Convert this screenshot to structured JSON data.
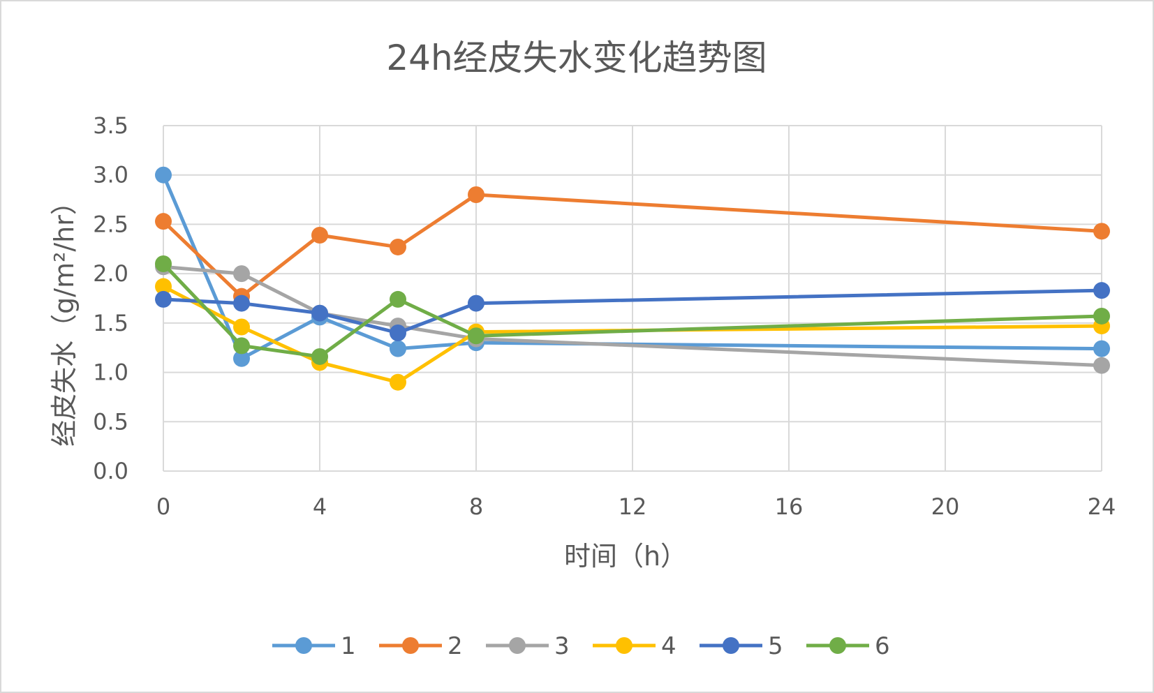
{
  "chart_data": {
    "type": "line",
    "title": "24h经皮失水变化趋势图",
    "xlabel": "时间（h）",
    "ylabel": "经皮失水（g/m²/hr）",
    "xlim": [
      0,
      24
    ],
    "ylim": [
      0,
      3.5
    ],
    "x_ticks": [
      0,
      4,
      8,
      12,
      16,
      20,
      24
    ],
    "y_ticks": [
      0.0,
      0.5,
      1.0,
      1.5,
      2.0,
      2.5,
      3.0,
      3.5
    ],
    "grid": true,
    "legend_position": "bottom",
    "x": [
      0,
      2,
      4,
      6,
      8,
      24
    ],
    "series": [
      {
        "name": "1",
        "color": "#5b9bd5",
        "values": [
          3.0,
          1.14,
          1.56,
          1.24,
          1.3,
          1.24
        ]
      },
      {
        "name": "2",
        "color": "#ed7d31",
        "values": [
          2.53,
          1.77,
          2.39,
          2.27,
          2.8,
          2.43
        ]
      },
      {
        "name": "3",
        "color": "#a5a5a5",
        "values": [
          2.07,
          2.0,
          1.6,
          1.47,
          1.34,
          1.07
        ]
      },
      {
        "name": "4",
        "color": "#ffc000",
        "values": [
          1.87,
          1.46,
          1.1,
          0.9,
          1.41,
          1.47
        ]
      },
      {
        "name": "5",
        "color": "#4472c4",
        "values": [
          1.74,
          1.7,
          1.6,
          1.4,
          1.7,
          1.83
        ]
      },
      {
        "name": "6",
        "color": "#70ad47",
        "values": [
          2.1,
          1.27,
          1.16,
          1.74,
          1.37,
          1.57
        ]
      }
    ]
  }
}
